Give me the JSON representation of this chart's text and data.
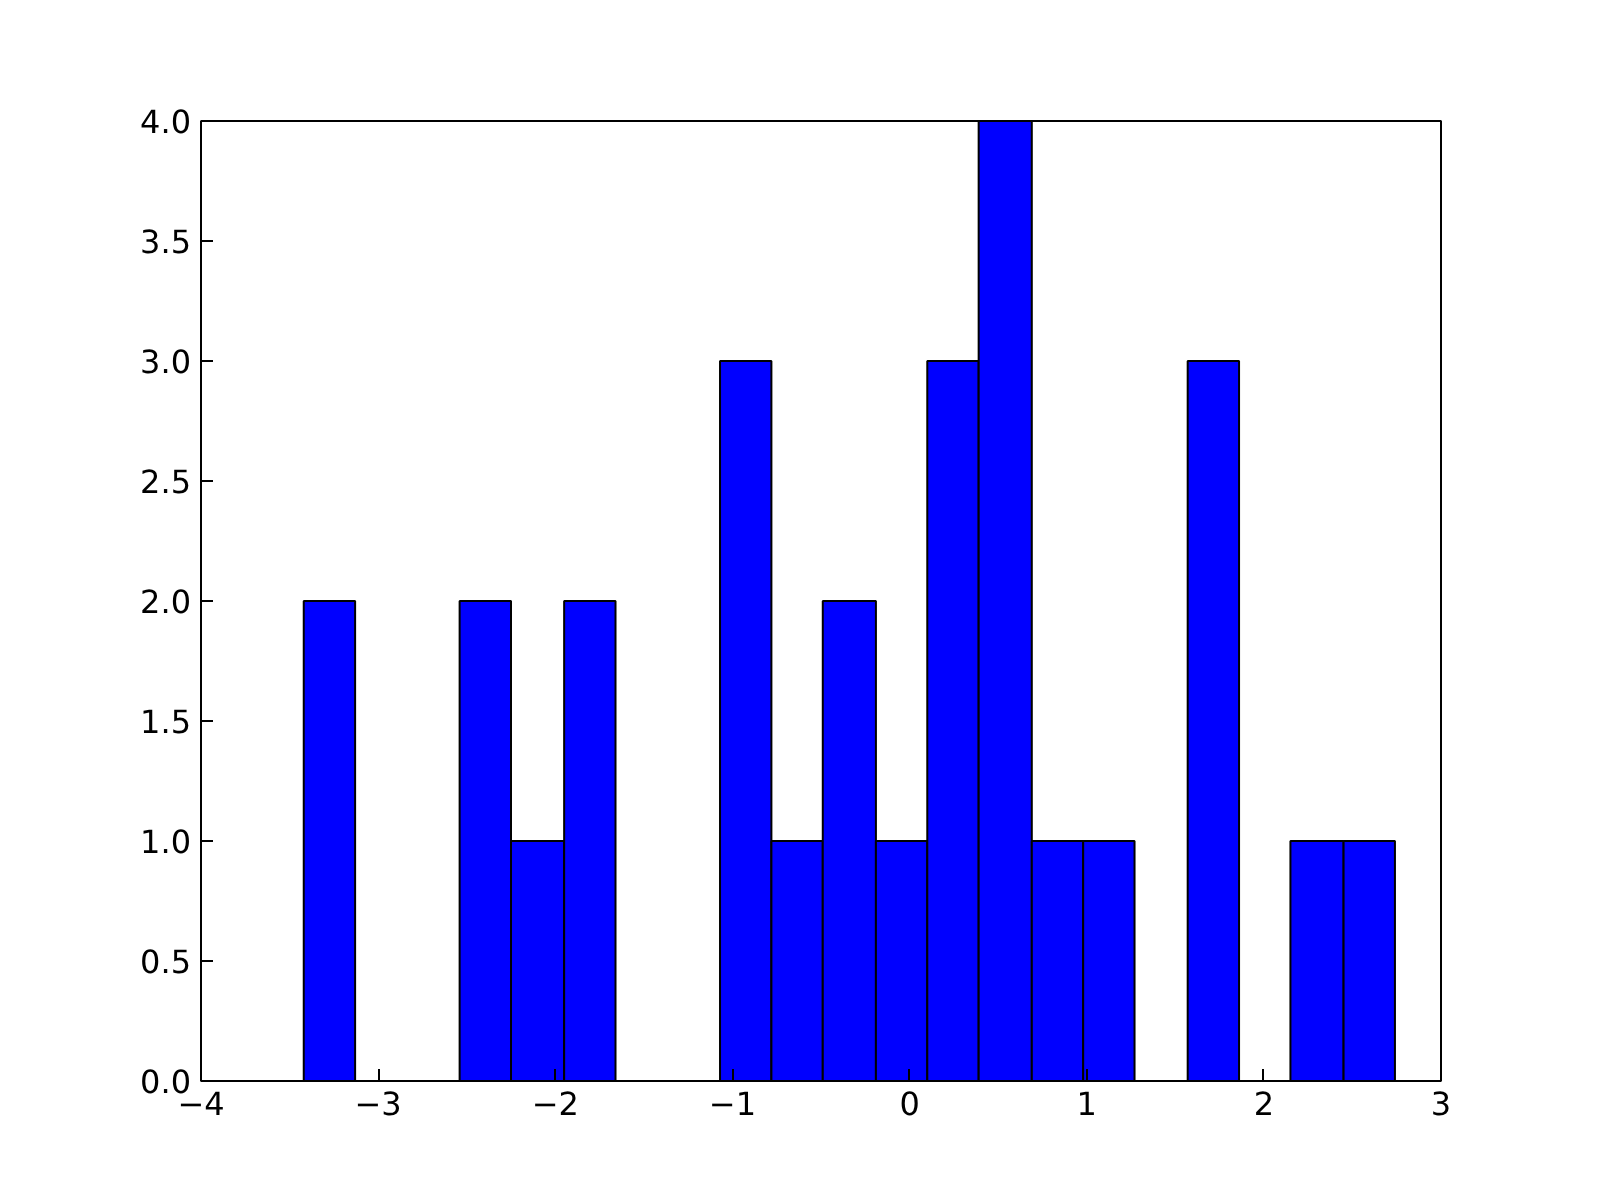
{
  "chart_data": {
    "type": "histogram",
    "bins": [
      -3.42,
      -3.13,
      -2.54,
      -2.25,
      -1.95,
      -1.66,
      -1.07,
      -0.78,
      -0.49,
      -0.19,
      0.1,
      0.39,
      0.69,
      0.98,
      1.27,
      1.57,
      1.86,
      2.15,
      2.45,
      2.74
    ],
    "values": [
      2,
      0,
      2,
      1,
      2,
      0,
      3,
      1,
      2,
      1,
      3,
      4,
      1,
      1,
      0,
      3,
      0,
      1,
      1
    ],
    "color": "#0000ff",
    "xlim": [
      -4,
      3
    ],
    "xticks": [
      {
        "value": -4,
        "label": "−4"
      },
      {
        "value": -3,
        "label": "−3"
      },
      {
        "value": -2,
        "label": "−2"
      },
      {
        "value": -1,
        "label": "−1"
      },
      0,
      1,
      2,
      3
    ],
    "ylim": [
      0,
      4
    ],
    "yticks": [
      {
        "value": 0,
        "label": "0.0"
      },
      {
        "value": 0.5,
        "label": "0.5"
      },
      {
        "value": 1,
        "label": "1.0"
      },
      {
        "value": 1.5,
        "label": "1.5"
      },
      {
        "value": 2,
        "label": "2.0"
      },
      {
        "value": 2.5,
        "label": "2.5"
      },
      {
        "value": 3,
        "label": "3.0"
      },
      {
        "value": 3.5,
        "label": "3.5"
      },
      {
        "value": 4,
        "label": "4.0"
      }
    ],
    "grid": false
  }
}
